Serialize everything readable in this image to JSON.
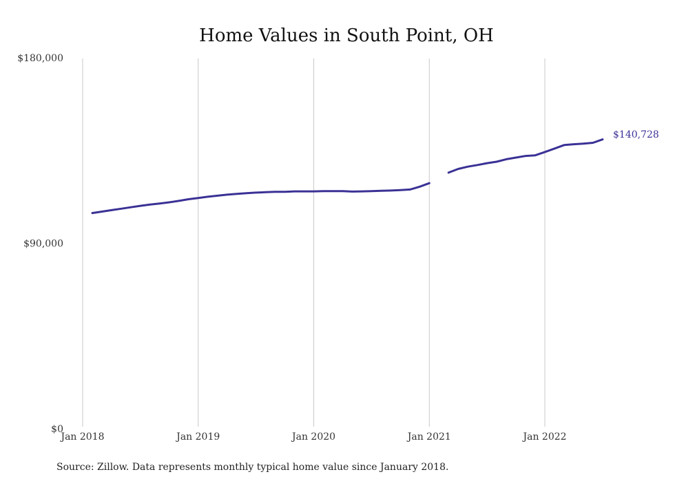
{
  "chart_data": {
    "type": "line",
    "title": "Home Values in South Point, OH",
    "xlabel": "",
    "ylabel": "",
    "x_range": [
      "2018-01",
      "2022-07"
    ],
    "ylim": [
      0,
      180000
    ],
    "y_ticks": [
      {
        "value": 0,
        "label": "$0"
      },
      {
        "value": 90000,
        "label": "$90,000"
      },
      {
        "value": 180000,
        "label": "$180,000"
      }
    ],
    "x_ticks": [
      {
        "value": "2018-01",
        "label": "Jan 2018"
      },
      {
        "value": "2019-01",
        "label": "Jan 2019"
      },
      {
        "value": "2020-01",
        "label": "Jan 2020"
      },
      {
        "value": "2021-01",
        "label": "Jan 2021"
      },
      {
        "value": "2022-01",
        "label": "Jan 2022"
      }
    ],
    "grid": "vertical",
    "line_color": "#3a3195",
    "end_label": "$140,728",
    "series": [
      {
        "segments": [
          [
            {
              "x": "2018-02",
              "y": 105000
            },
            {
              "x": "2018-03",
              "y": 105700
            },
            {
              "x": "2018-04",
              "y": 106400
            },
            {
              "x": "2018-05",
              "y": 107100
            },
            {
              "x": "2018-06",
              "y": 107800
            },
            {
              "x": "2018-07",
              "y": 108500
            },
            {
              "x": "2018-08",
              "y": 109100
            },
            {
              "x": "2018-09",
              "y": 109600
            },
            {
              "x": "2018-10",
              "y": 110200
            },
            {
              "x": "2018-11",
              "y": 110900
            },
            {
              "x": "2018-12",
              "y": 111700
            },
            {
              "x": "2019-01",
              "y": 112300
            },
            {
              "x": "2019-02",
              "y": 112900
            },
            {
              "x": "2019-03",
              "y": 113400
            },
            {
              "x": "2019-04",
              "y": 113900
            },
            {
              "x": "2019-05",
              "y": 114300
            },
            {
              "x": "2019-06",
              "y": 114600
            },
            {
              "x": "2019-07",
              "y": 114900
            },
            {
              "x": "2019-08",
              "y": 115100
            },
            {
              "x": "2019-09",
              "y": 115300
            },
            {
              "x": "2019-10",
              "y": 115300
            },
            {
              "x": "2019-11",
              "y": 115500
            },
            {
              "x": "2019-12",
              "y": 115500
            },
            {
              "x": "2020-01",
              "y": 115500
            },
            {
              "x": "2020-02",
              "y": 115600
            },
            {
              "x": "2020-03",
              "y": 115600
            },
            {
              "x": "2020-04",
              "y": 115600
            },
            {
              "x": "2020-05",
              "y": 115400
            },
            {
              "x": "2020-06",
              "y": 115500
            },
            {
              "x": "2020-07",
              "y": 115600
            },
            {
              "x": "2020-08",
              "y": 115800
            },
            {
              "x": "2020-09",
              "y": 115900
            },
            {
              "x": "2020-10",
              "y": 116100
            },
            {
              "x": "2020-11",
              "y": 116400
            },
            {
              "x": "2020-12",
              "y": 117800
            },
            {
              "x": "2021-01",
              "y": 119500
            }
          ],
          [
            {
              "x": "2021-03",
              "y": 124600
            },
            {
              "x": "2021-04",
              "y": 126400
            },
            {
              "x": "2021-05",
              "y": 127500
            },
            {
              "x": "2021-06",
              "y": 128300
            },
            {
              "x": "2021-07",
              "y": 129200
            },
            {
              "x": "2021-08",
              "y": 129900
            },
            {
              "x": "2021-09",
              "y": 131100
            },
            {
              "x": "2021-10",
              "y": 131900
            },
            {
              "x": "2021-11",
              "y": 132700
            },
            {
              "x": "2021-12",
              "y": 133000
            },
            {
              "x": "2022-01",
              "y": 134600
            },
            {
              "x": "2022-02",
              "y": 136300
            },
            {
              "x": "2022-03",
              "y": 138000
            },
            {
              "x": "2022-04",
              "y": 138400
            },
            {
              "x": "2022-05",
              "y": 138700
            },
            {
              "x": "2022-06",
              "y": 139100
            },
            {
              "x": "2022-07",
              "y": 140728
            }
          ]
        ]
      }
    ]
  },
  "footer": {
    "source": "Source: Zillow. Data represents monthly typical home value since January 2018."
  }
}
